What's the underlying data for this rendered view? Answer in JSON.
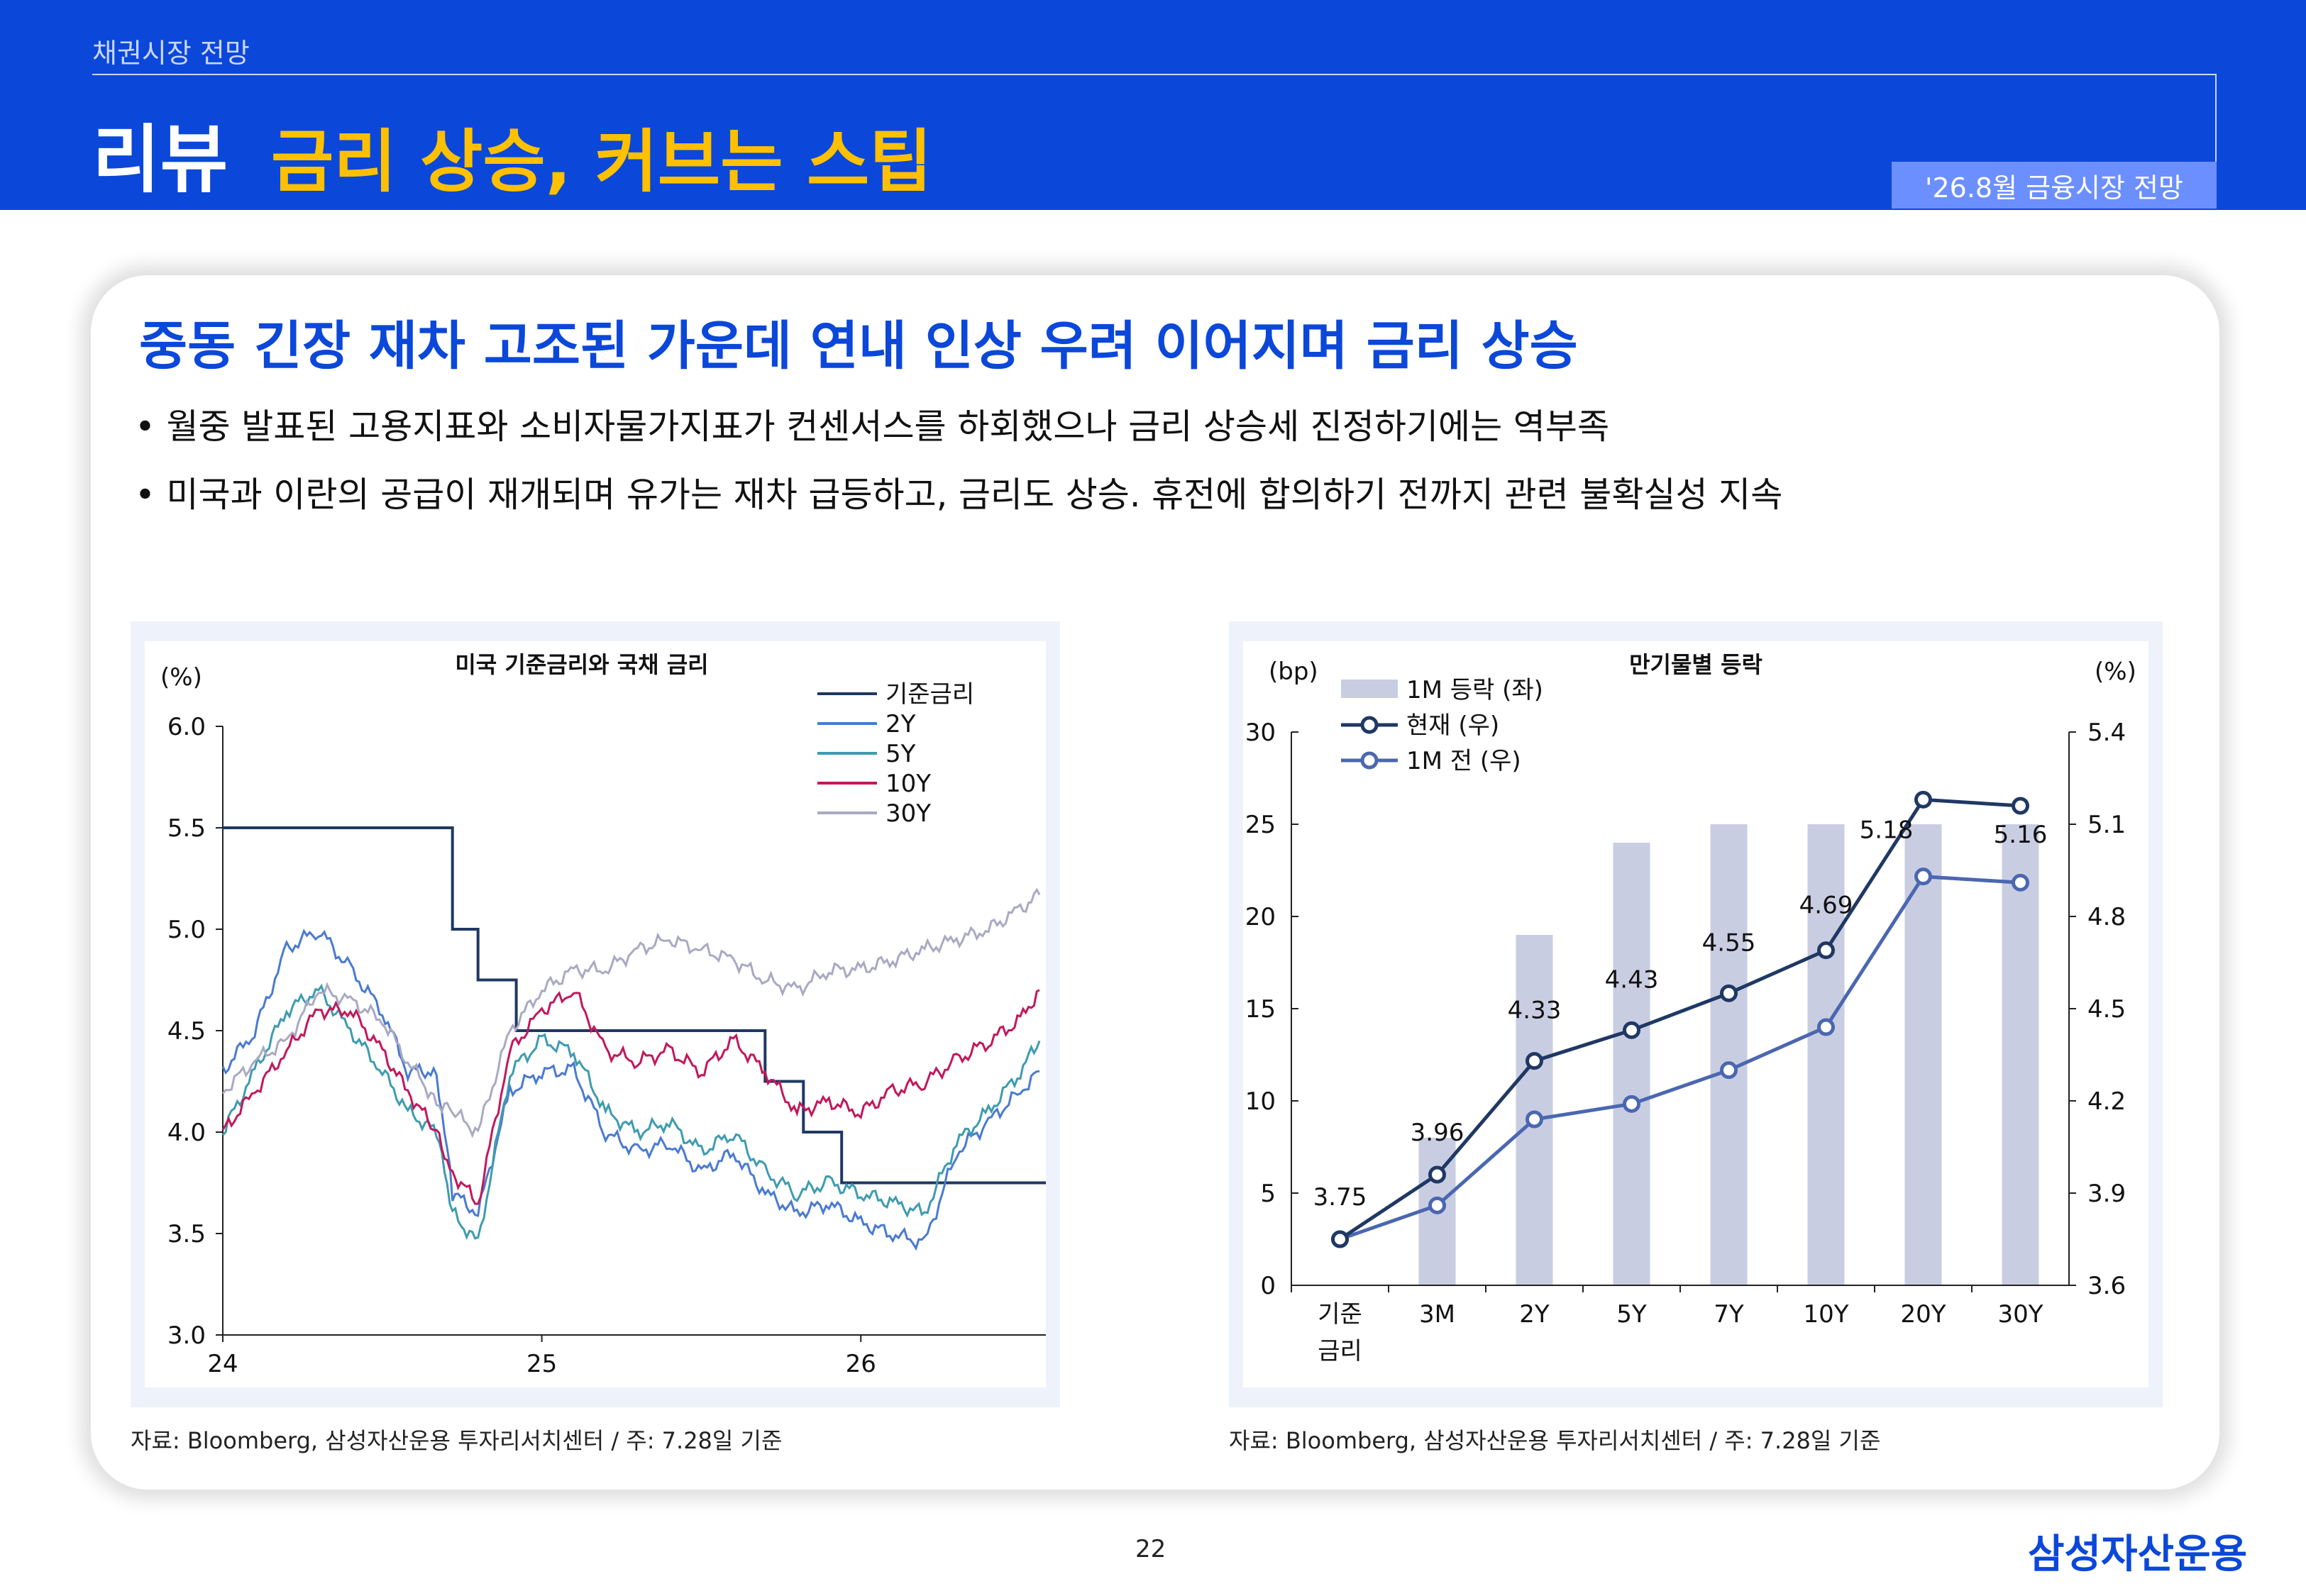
{
  "header": {
    "breadcrumb": "채권시장 전망",
    "title": "리뷰",
    "subtitle": "금리 상승, 커브는 스팁",
    "date_badge": "'26.8월 금융시장 전망",
    "colors": {
      "brand": "#0b47d9",
      "accent": "#ffc000",
      "badge": "#6c8fff"
    }
  },
  "headline": "중동 긴장 재차 고조된 가운데 연내 인상 우려 이어지며 금리 상승",
  "bullets": [
    "• 월중 발표된 고용지표와 소비자물가지표가 컨센서스를 하회했으나 금리 상승세 진정하기에는 역부족",
    "• 미국과 이란의 공급이 재개되며 유가는 재차 급등하고, 금리도 상승. 휴전에 합의하기 전까지 관련 불확실성 지속"
  ],
  "sources": {
    "left": "자료: Bloomberg, 삼성자산운용 투자리서치센터 / 주: 7.28일 기준",
    "right": "자료: Bloomberg, 삼성자산운용 투자리서치센터 / 주: 7.28일 기준"
  },
  "footer": {
    "page_number": "22",
    "logo": "삼성자산운용"
  },
  "chart_data": [
    {
      "type": "line",
      "title": "미국 기준금리와 국채 금리",
      "ylabel": "(%)",
      "ylim": [
        3.0,
        6.0
      ],
      "yticks": [
        "6.0",
        "5.5",
        "5.0",
        "4.5",
        "4.0",
        "3.5",
        "3.0"
      ],
      "xticks": [
        "24",
        "25",
        "26"
      ],
      "x_range": [
        24.0,
        26.58
      ],
      "legend_position": "top-right",
      "series": [
        {
          "name": "기준금리",
          "color": "#1f3864",
          "step": true,
          "x": [
            24.0,
            24.72,
            24.72,
            24.8,
            24.8,
            24.92,
            24.92,
            25.7,
            25.7,
            25.82,
            25.82,
            25.94,
            25.94,
            26.58
          ],
          "values": [
            5.5,
            5.5,
            5.0,
            5.0,
            4.75,
            4.75,
            4.5,
            4.5,
            4.25,
            4.25,
            4.0,
            4.0,
            3.75,
            3.75
          ]
        },
        {
          "name": "2Y",
          "color": "#4a7ad1",
          "x": [
            24.0,
            24.1,
            24.2,
            24.3,
            24.4,
            24.5,
            24.58,
            24.67,
            24.72,
            24.8,
            24.9,
            25.0,
            25.1,
            25.2,
            25.3,
            25.4,
            25.5,
            25.6,
            25.7,
            25.8,
            25.9,
            26.0,
            26.1,
            26.2,
            26.3,
            26.4,
            26.5,
            26.56
          ],
          "values": [
            4.3,
            4.5,
            4.9,
            5.0,
            4.8,
            4.6,
            4.3,
            4.3,
            3.7,
            3.6,
            4.2,
            4.3,
            4.3,
            4.0,
            3.9,
            3.95,
            3.8,
            3.9,
            3.7,
            3.6,
            3.65,
            3.55,
            3.5,
            3.45,
            3.9,
            4.05,
            4.2,
            4.3
          ]
        },
        {
          "name": "5Y",
          "color": "#3e9bb0",
          "x": [
            24.0,
            24.1,
            24.2,
            24.3,
            24.4,
            24.5,
            24.58,
            24.67,
            24.72,
            24.8,
            24.9,
            25.0,
            25.1,
            25.2,
            25.3,
            25.4,
            25.5,
            25.6,
            25.7,
            25.8,
            25.9,
            26.0,
            26.1,
            26.2,
            26.3,
            26.4,
            26.5,
            26.56
          ],
          "values": [
            4.0,
            4.3,
            4.6,
            4.7,
            4.5,
            4.3,
            4.1,
            4.0,
            3.6,
            3.45,
            4.3,
            4.45,
            4.4,
            4.1,
            4.0,
            4.05,
            3.9,
            4.0,
            3.8,
            3.7,
            3.75,
            3.7,
            3.65,
            3.6,
            3.95,
            4.1,
            4.3,
            4.45
          ]
        },
        {
          "name": "10Y",
          "color": "#c2185b",
          "x": [
            24.0,
            24.1,
            24.2,
            24.3,
            24.4,
            24.5,
            24.58,
            24.67,
            24.72,
            24.8,
            24.9,
            25.0,
            25.1,
            25.2,
            25.3,
            25.4,
            25.5,
            25.6,
            25.7,
            25.8,
            25.9,
            26.0,
            26.1,
            26.2,
            26.3,
            26.4,
            26.5,
            26.56
          ],
          "values": [
            4.0,
            4.2,
            4.4,
            4.6,
            4.6,
            4.4,
            4.2,
            4.0,
            3.8,
            3.65,
            4.4,
            4.6,
            4.7,
            4.4,
            4.35,
            4.4,
            4.3,
            4.45,
            4.3,
            4.1,
            4.15,
            4.1,
            4.2,
            4.25,
            4.35,
            4.45,
            4.55,
            4.7
          ]
        },
        {
          "name": "30Y",
          "color": "#a9a9c3",
          "x": [
            24.0,
            24.1,
            24.2,
            24.3,
            24.4,
            24.5,
            24.58,
            24.67,
            24.72,
            24.8,
            24.9,
            25.0,
            25.1,
            25.2,
            25.3,
            25.4,
            25.5,
            25.6,
            25.7,
            25.8,
            25.9,
            26.0,
            26.1,
            26.2,
            26.3,
            26.4,
            26.5,
            26.56
          ],
          "values": [
            4.2,
            4.35,
            4.45,
            4.7,
            4.65,
            4.55,
            4.35,
            4.15,
            4.1,
            4.0,
            4.5,
            4.7,
            4.8,
            4.8,
            4.9,
            4.95,
            4.9,
            4.85,
            4.75,
            4.7,
            4.8,
            4.8,
            4.85,
            4.9,
            4.95,
            5.0,
            5.1,
            5.17
          ]
        }
      ]
    },
    {
      "type": "bar",
      "title": "만기물별 등락",
      "ylabel_left": "(bp)",
      "ylabel_right": "(%)",
      "categories": [
        "기준\n금리",
        "3M",
        "2Y",
        "5Y",
        "7Y",
        "10Y",
        "20Y",
        "30Y"
      ],
      "ylim_left": [
        0,
        30
      ],
      "yticks_left": [
        "30",
        "25",
        "20",
        "15",
        "10",
        "5",
        "0"
      ],
      "ylim_right": [
        3.6,
        5.4
      ],
      "yticks_right": [
        "5.4",
        "5.1",
        "4.8",
        "4.5",
        "4.2",
        "3.9",
        "3.6"
      ],
      "legend_position": "top-left",
      "bar_series": {
        "name": "1M 등락 (좌)",
        "color": "#c9cde2",
        "values": [
          0,
          8,
          19,
          24,
          25,
          25,
          25,
          25
        ]
      },
      "line_series": [
        {
          "name": "현재 (우)",
          "color": "#1f3864",
          "values": [
            3.75,
            3.96,
            4.33,
            4.43,
            4.55,
            4.69,
            5.18,
            5.16
          ],
          "labels": [
            "3.75",
            "3.96",
            "4.33",
            "4.43",
            "4.55",
            "4.69",
            "5.18",
            "5.16"
          ]
        },
        {
          "name": "1M 전 (우)",
          "color": "#4a67b0",
          "values": [
            3.75,
            3.86,
            4.14,
            4.19,
            4.3,
            4.44,
            4.93,
            4.91
          ]
        }
      ]
    }
  ]
}
